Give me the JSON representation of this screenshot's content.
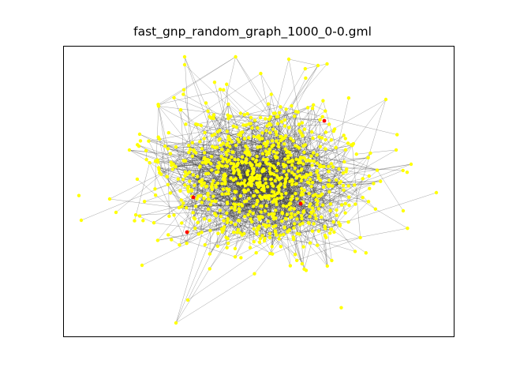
{
  "title": "fast_gnp_random_graph_1000_0-0.gml",
  "graph": {
    "node_count": 1000,
    "node_color": "#ffff00",
    "highlight_color": "#ff0000",
    "edge_color": "#333333"
  }
}
